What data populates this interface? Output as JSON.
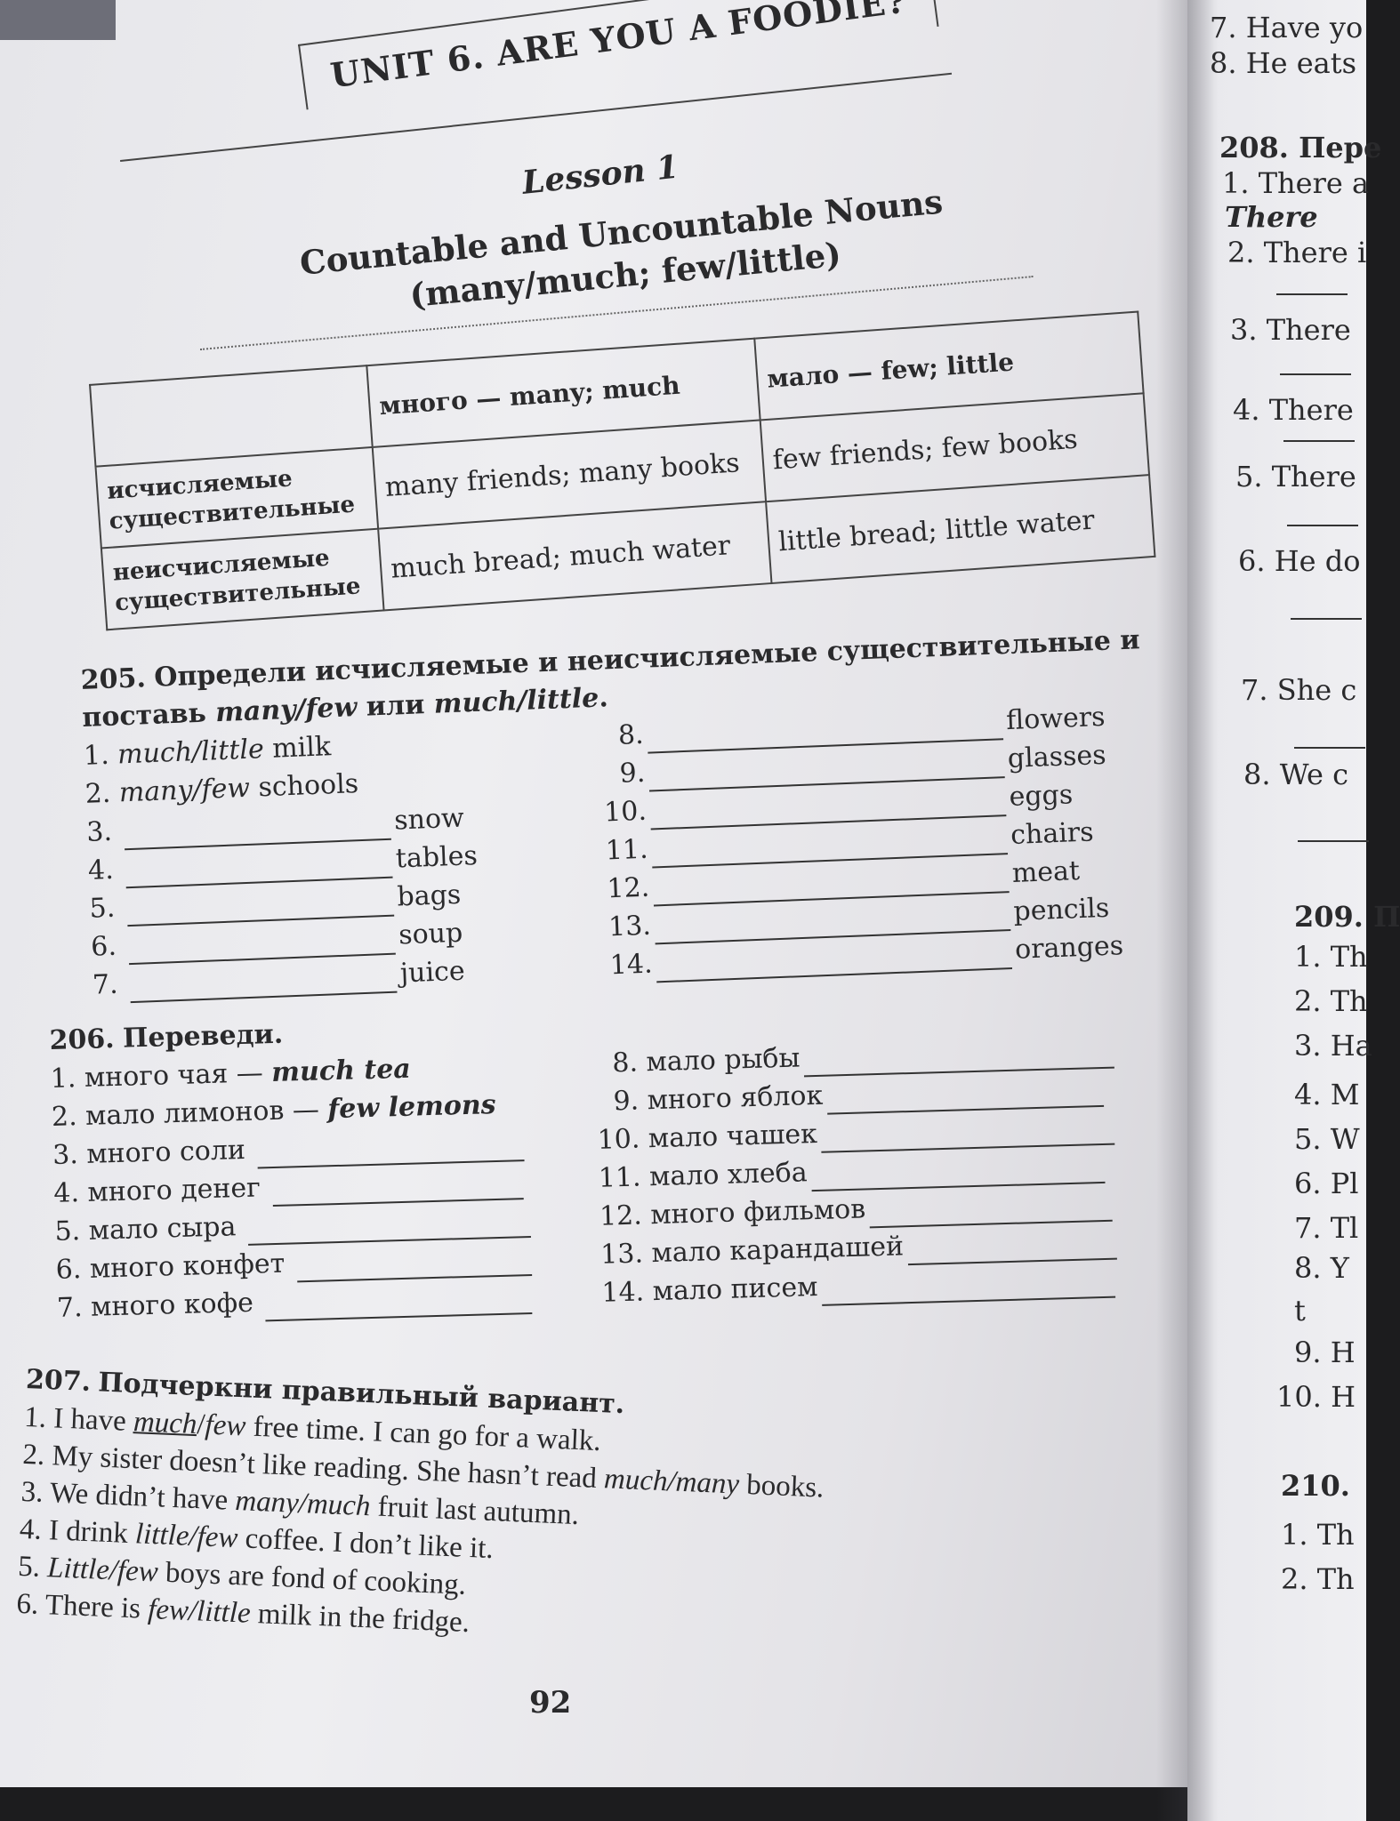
{
  "unit_title": "UNIT 6. ARE YOU A FOODIE?",
  "lesson": "Lesson 1",
  "topic_line1": "Countable and Uncountable Nouns",
  "topic_line2": "(many/much; few/little)",
  "grammar_table": {
    "headers": [
      "",
      "много — many; much",
      "мало — few; little"
    ],
    "rows": [
      {
        "label": "исчисляемые существительные",
        "many": "many friends; many books",
        "few": "few friends; few books"
      },
      {
        "label": "неисчисляемые существительные",
        "many": "much bread; much water",
        "few": "little bread; little water"
      }
    ]
  },
  "ex205": {
    "number": "205.",
    "instruction_prefix": "Определи исчисляемые и неисчисляемые существительные и поставь ",
    "instruction_italic1": "many/few",
    "instruction_mid": " или ",
    "instruction_italic2": "much/little",
    "instruction_end": ".",
    "left": [
      {
        "n": "1.",
        "answer": "much/little",
        "noun": "milk"
      },
      {
        "n": "2.",
        "answer": "many/few",
        "noun": "schools"
      },
      {
        "n": "3.",
        "answer": "",
        "noun": "snow"
      },
      {
        "n": "4.",
        "answer": "",
        "noun": "tables"
      },
      {
        "n": "5.",
        "answer": "",
        "noun": "bags"
      },
      {
        "n": "6.",
        "answer": "",
        "noun": "soup"
      },
      {
        "n": "7.",
        "answer": "",
        "noun": "juice"
      }
    ],
    "right": [
      {
        "n": "8.",
        "noun": "flowers"
      },
      {
        "n": "9.",
        "noun": "glasses"
      },
      {
        "n": "10.",
        "noun": "eggs"
      },
      {
        "n": "11.",
        "noun": "chairs"
      },
      {
        "n": "12.",
        "noun": "meat"
      },
      {
        "n": "13.",
        "noun": "pencils"
      },
      {
        "n": "14.",
        "noun": "oranges"
      }
    ]
  },
  "ex206": {
    "number": "206.",
    "instruction": "Переведи.",
    "left": [
      {
        "n": "1.",
        "ru": "много чая —",
        "en": "much tea"
      },
      {
        "n": "2.",
        "ru": "мало лимонов —",
        "en": "few lemons"
      },
      {
        "n": "3.",
        "ru": "много соли",
        "en": ""
      },
      {
        "n": "4.",
        "ru": "много денег",
        "en": ""
      },
      {
        "n": "5.",
        "ru": "мало сыра",
        "en": ""
      },
      {
        "n": "6.",
        "ru": "много конфет",
        "en": ""
      },
      {
        "n": "7.",
        "ru": "много кофе",
        "en": ""
      }
    ],
    "right": [
      {
        "n": "8.",
        "ru": "мало рыбы"
      },
      {
        "n": "9.",
        "ru": "много яблок"
      },
      {
        "n": "10.",
        "ru": "мало чашек"
      },
      {
        "n": "11.",
        "ru": "мало хлеба"
      },
      {
        "n": "12.",
        "ru": "много фильмов"
      },
      {
        "n": "13.",
        "ru": "мало карандашей"
      },
      {
        "n": "14.",
        "ru": "мало писем"
      }
    ]
  },
  "ex207": {
    "number": "207.",
    "instruction": "Подчеркни правильный вариант.",
    "sentences": [
      [
        {
          "t": "1. I have "
        },
        {
          "t": "much",
          "i": true,
          "u": true
        },
        {
          "t": "/"
        },
        {
          "t": "few",
          "i": true
        },
        {
          "t": " free time. I can go for a walk."
        }
      ],
      [
        {
          "t": "2. My sister doesn’t like reading. She hasn’t read "
        },
        {
          "t": "much/many",
          "i": true
        },
        {
          "t": " books."
        }
      ],
      [
        {
          "t": "3. We didn’t have "
        },
        {
          "t": "many/much",
          "i": true
        },
        {
          "t": " fruit last autumn."
        }
      ],
      [
        {
          "t": "4. I drink "
        },
        {
          "t": "little/few",
          "i": true
        },
        {
          "t": " coffee. I don’t like it."
        }
      ],
      [
        {
          "t": "5. "
        },
        {
          "t": "Little/few",
          "i": true
        },
        {
          "t": " boys are fond of cooking."
        }
      ],
      [
        {
          "t": "6. There is "
        },
        {
          "t": "few/little",
          "i": true
        },
        {
          "t": " milk in the fridge."
        }
      ]
    ]
  },
  "page_number": "92",
  "right_page": {
    "lines": [
      {
        "t": "7. Have yo",
        "b": false
      },
      {
        "t": "8. He eats",
        "b": false
      },
      {
        "t": "208. Пере",
        "b": true
      },
      {
        "t": "1. There a",
        "b": false
      },
      {
        "t": "There",
        "b": true,
        "i": true
      },
      {
        "t": "2. There i",
        "b": false
      },
      {
        "t": "3. There",
        "b": false
      },
      {
        "t": "4. There",
        "b": false
      },
      {
        "t": "5. There",
        "b": false
      },
      {
        "t": "6. He do",
        "b": false
      },
      {
        "t": "7. She c",
        "b": false
      },
      {
        "t": "8. We c",
        "b": false
      },
      {
        "t": "209. П",
        "b": true
      },
      {
        "t": "1. Th",
        "b": false
      },
      {
        "t": "2. Th",
        "b": false
      },
      {
        "t": "3. Ha",
        "b": false
      },
      {
        "t": "4. M",
        "b": false
      },
      {
        "t": "5. W",
        "b": false
      },
      {
        "t": "6. Pl",
        "b": false
      },
      {
        "t": "7. Tl",
        "b": false
      },
      {
        "t": "8. Y",
        "b": false
      },
      {
        "t": "t",
        "b": false
      },
      {
        "t": "9. H",
        "b": false
      },
      {
        "t": "10. H",
        "b": false
      },
      {
        "t": "210.",
        "b": true
      },
      {
        "t": "1. Th",
        "b": false
      },
      {
        "t": "2. Th",
        "b": false
      }
    ]
  }
}
